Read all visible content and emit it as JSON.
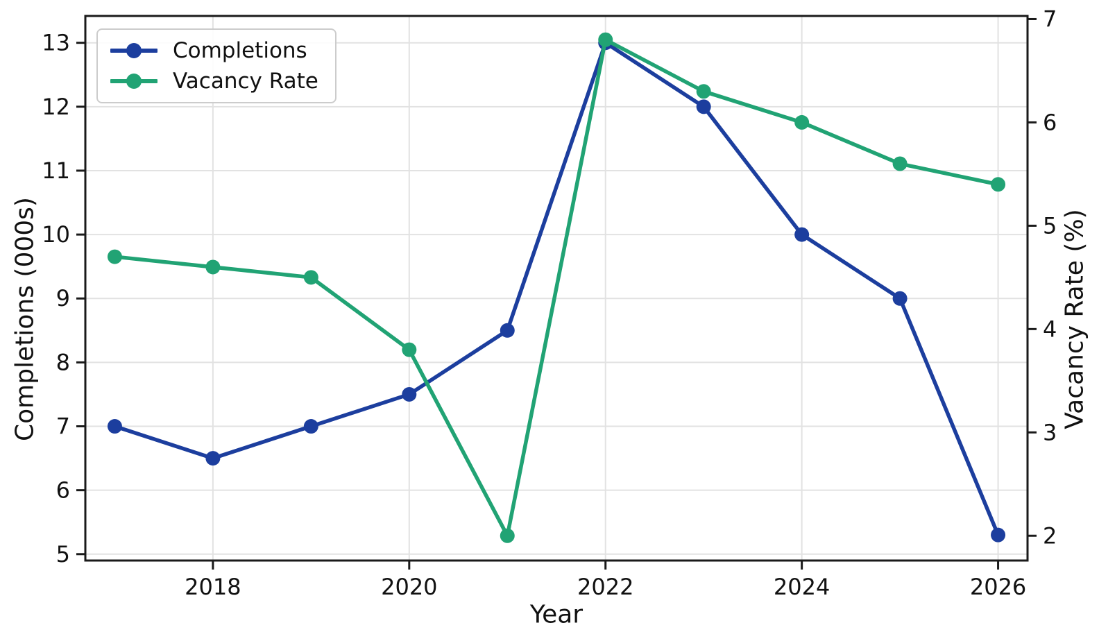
{
  "figure": {
    "background": "#ffffff"
  },
  "style": {
    "grid_color": "#e2e2e2",
    "spine_color": "#1a1a1a",
    "tick_color": "#1a1a1a",
    "text_color": "#111111",
    "legend_border_color": "#cccccc"
  },
  "chart_data": {
    "type": "line",
    "title": "",
    "xlabel": "Year",
    "ylabel_left": "Completions (000s)",
    "ylabel_right": "Vacancy Rate (%)",
    "x": [
      2017,
      2018,
      2019,
      2020,
      2021,
      2022,
      2023,
      2024,
      2025,
      2026
    ],
    "series": [
      {
        "name": "Completions",
        "axis": "left",
        "color": "#1c3e9e",
        "marker": "circle",
        "values": [
          7.0,
          6.5,
          7.0,
          7.5,
          8.5,
          13.0,
          12.0,
          10.0,
          9.0,
          5.3
        ]
      },
      {
        "name": "Vacancy Rate",
        "axis": "right",
        "color": "#21a374",
        "marker": "circle",
        "values": [
          4.7,
          4.6,
          4.5,
          3.8,
          2.0,
          6.8,
          6.3,
          6.0,
          5.6,
          5.4
        ]
      }
    ],
    "axes": {
      "x": {
        "ticks": [
          2018,
          2020,
          2022,
          2024,
          2026
        ],
        "range": [
          2016.7,
          2026.3
        ]
      },
      "left": {
        "ticks": [
          5,
          6,
          7,
          8,
          9,
          10,
          11,
          12,
          13
        ],
        "range": [
          4.9,
          13.42
        ]
      },
      "right": {
        "ticks": [
          2,
          3,
          4,
          5,
          6,
          7
        ],
        "range": [
          1.76,
          7.03
        ]
      }
    },
    "grid": {
      "horizontal": "left-axis-ticks",
      "vertical": "x-axis-ticks"
    },
    "legend": {
      "position": "upper-left",
      "labels": [
        "Completions",
        "Vacancy Rate"
      ]
    }
  }
}
